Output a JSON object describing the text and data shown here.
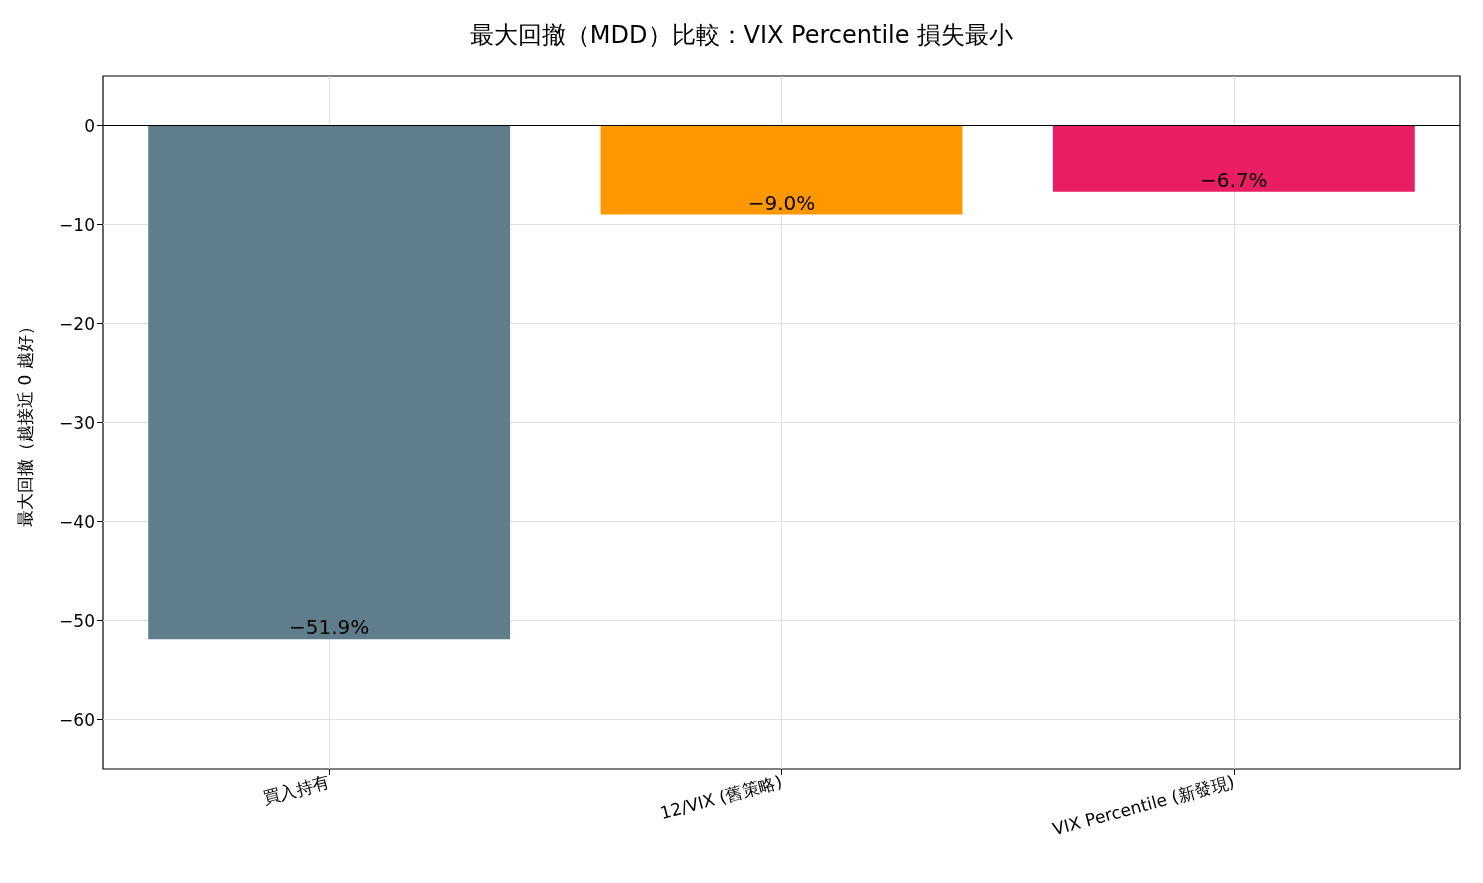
{
  "chart_data": {
    "type": "bar",
    "title": "最大回撤（MDD）比較：VIX Percentile 損失最小",
    "ylabel": "最大回撤（越接近 0 越好）",
    "categories": [
      "買入持有",
      "12/VIX (舊策略)",
      "VIX Percentile (新發現)"
    ],
    "values": [
      -51.9,
      -9.0,
      -6.7
    ],
    "colors": [
      "#607d8b",
      "#ff9800",
      "#e91e63"
    ],
    "value_labels": [
      "−51.9%",
      "−9.0%",
      "−6.7%"
    ],
    "ylim": [
      -65,
      5
    ],
    "yticks": [
      {
        "value": -60,
        "label": "−60"
      },
      {
        "value": -50,
        "label": "−50"
      },
      {
        "value": -40,
        "label": "−40"
      },
      {
        "value": -30,
        "label": "−30"
      },
      {
        "value": -20,
        "label": "−20"
      },
      {
        "value": -10,
        "label": "−10"
      },
      {
        "value": 0,
        "label": "0"
      }
    ],
    "ref_lines": [
      {
        "axis": "y",
        "value": 0,
        "color": "#000000"
      }
    ],
    "grid": true
  }
}
